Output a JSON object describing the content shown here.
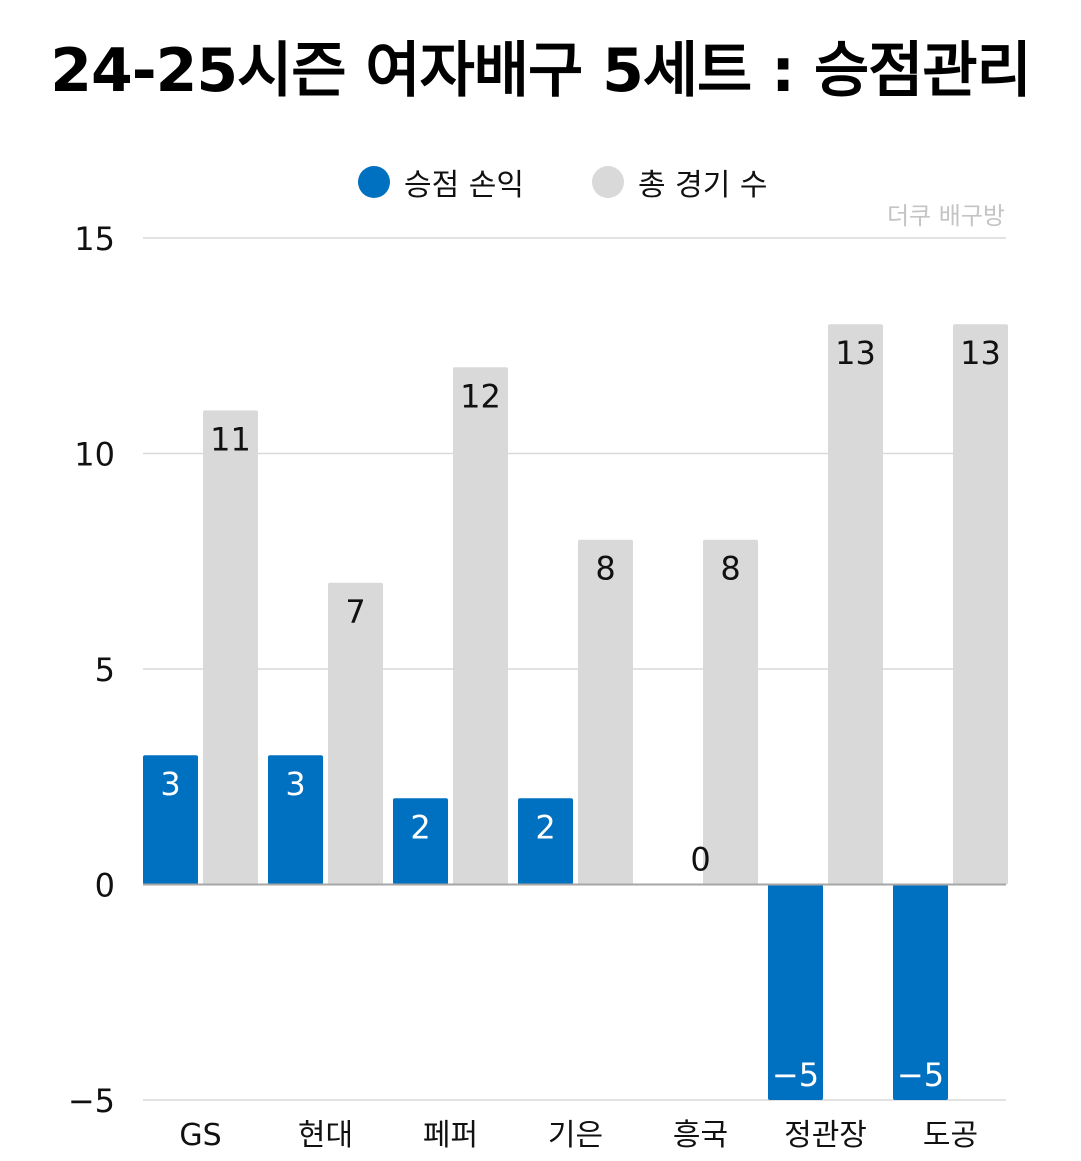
{
  "title": "24-25시즌 여자배구 5세트 : 승점관리",
  "source": "더쿠 배구방",
  "colors": {
    "series_points": "#0070c0",
    "series_games": "#d9d9d9",
    "grid": "#d9d9d9",
    "zero_line": "#a6a6a6"
  },
  "chart_data": {
    "type": "bar",
    "title": "24-25시즌 여자배구 5세트 : 승점관리",
    "categories": [
      "GS",
      "현대",
      "페퍼",
      "기은",
      "흥국",
      "정관장",
      "도공"
    ],
    "series": [
      {
        "name": "승점 손익",
        "values": [
          3,
          3,
          2,
          2,
          0,
          -5,
          -5
        ]
      },
      {
        "name": "총 경기 수",
        "values": [
          11,
          7,
          12,
          8,
          8,
          13,
          13
        ]
      }
    ],
    "yticks": [
      15,
      10,
      5,
      0,
      -5
    ],
    "ylim": [
      -5,
      15
    ],
    "grid": true,
    "legend": "top-center"
  }
}
